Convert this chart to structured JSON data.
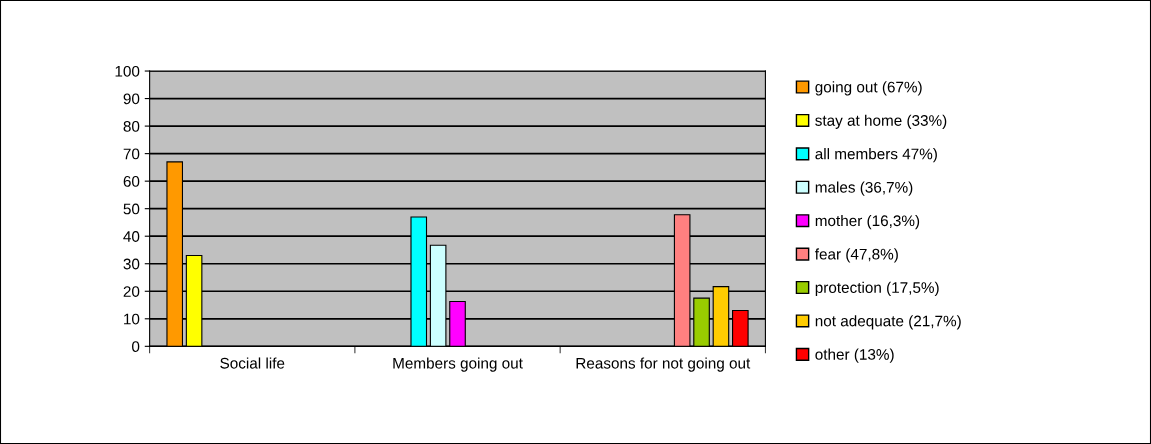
{
  "chart_data": {
    "type": "bar",
    "categories": [
      "Social life",
      "Members going out",
      "Reasons for not going out"
    ],
    "series": [
      {
        "name": "going out (67%)",
        "color": "#ff9900",
        "values": [
          67,
          null,
          null
        ]
      },
      {
        "name": "stay at home (33%)",
        "color": "#ffff00",
        "values": [
          33,
          null,
          null
        ]
      },
      {
        "name": "all members 47%)",
        "color": "#00ffff",
        "values": [
          null,
          47,
          null
        ]
      },
      {
        "name": "males (36,7%)",
        "color": "#ccffff",
        "values": [
          null,
          36.7,
          null
        ]
      },
      {
        "name": "mother (16,3%)",
        "color": "#ff00ff",
        "values": [
          null,
          16.3,
          null
        ]
      },
      {
        "name": "fear (47,8%)",
        "color": "#ff8080",
        "values": [
          null,
          null,
          47.8
        ]
      },
      {
        "name": "protection (17,5%)",
        "color": "#99cc00",
        "values": [
          null,
          null,
          17.5
        ]
      },
      {
        "name": "not adequate (21,7%)",
        "color": "#ffcc00",
        "values": [
          null,
          null,
          21.7
        ]
      },
      {
        "name": "other (13%)",
        "color": "#ff0000",
        "values": [
          null,
          null,
          13
        ]
      }
    ],
    "ylim": [
      0,
      100
    ],
    "yticks": [
      0,
      10,
      20,
      30,
      40,
      50,
      60,
      70,
      80,
      90,
      100
    ],
    "grid": "y",
    "legend": "right"
  }
}
